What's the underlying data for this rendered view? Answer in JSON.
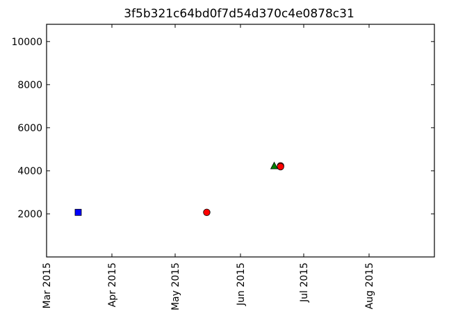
{
  "chart_data": {
    "type": "scatter",
    "title": "3f5b321c64bd0f7d54d370c4e0878c31",
    "xlabel": "",
    "ylabel": "",
    "x_axis_type": "date",
    "xlim": [
      "2015-03-01",
      "2015-09-01"
    ],
    "ylim": [
      0,
      10800
    ],
    "x_ticks": [
      {
        "date": "2015-03-01",
        "label": "Mar 2015"
      },
      {
        "date": "2015-04-01",
        "label": "Apr 2015"
      },
      {
        "date": "2015-05-01",
        "label": "May 2015"
      },
      {
        "date": "2015-06-01",
        "label": "Jun 2015"
      },
      {
        "date": "2015-07-01",
        "label": "Jul 2015"
      },
      {
        "date": "2015-08-01",
        "label": "Aug 2015"
      }
    ],
    "y_ticks": [
      {
        "value": 2000,
        "label": "2000"
      },
      {
        "value": 4000,
        "label": "4000"
      },
      {
        "value": 6000,
        "label": "6000"
      },
      {
        "value": 8000,
        "label": "8000"
      },
      {
        "value": 10000,
        "label": "10000"
      }
    ],
    "grid": false,
    "legend": "none",
    "series": [
      {
        "marker": "square",
        "color": "#0000ff",
        "points": [
          {
            "x": "2015-03-16",
            "y": 2070
          }
        ]
      },
      {
        "marker": "circle",
        "color": "#ff0000",
        "points": [
          {
            "x": "2015-05-16",
            "y": 2070
          },
          {
            "x": "2015-06-20",
            "y": 4230
          },
          {
            "x": "2015-06-20",
            "y": 4190
          }
        ]
      },
      {
        "marker": "triangle",
        "color": "#008000",
        "points": [
          {
            "x": "2015-06-17",
            "y": 4220
          }
        ]
      }
    ]
  }
}
